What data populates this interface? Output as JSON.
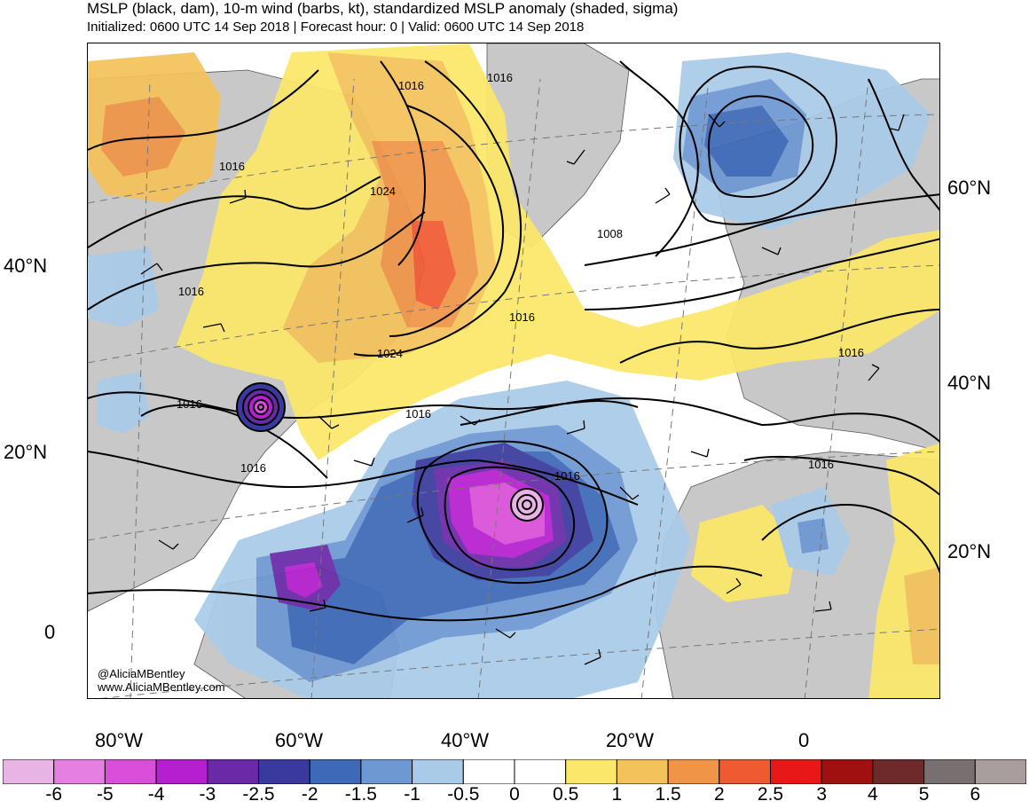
{
  "header": {
    "title": "MSLP (black, dam), 10-m wind (barbs, kt), standardized MSLP anomaly (shaded, sigma)",
    "subtitle": "Initialized: 0600 UTC 14 Sep 2018 | Forecast hour: 0 | Valid: 0600 UTC 14 Sep 2018"
  },
  "map": {
    "left_lat_labels": [
      "40°N",
      "20°N",
      "0"
    ],
    "right_lat_labels": [
      "60°N",
      "40°N",
      "20°N"
    ],
    "lon_labels": [
      "80°W",
      "60°W",
      "40°W",
      "20°W",
      "0"
    ],
    "contour_labels": [
      "1016",
      "1016",
      "1016",
      "1024",
      "1016",
      "1008",
      "1016",
      "1016",
      "1024",
      "1016",
      "1016",
      "1016",
      "1016",
      "1016"
    ],
    "credit_handle": "@AliciaMBentley",
    "credit_url": "www.AliciaMBentley.com",
    "land_color": "#c8c8c8",
    "contour_color": "#000000"
  },
  "colorbar": {
    "labels": [
      "-6",
      "-5",
      "-4",
      "-3",
      "-2.5",
      "-2",
      "-1.5",
      "-1",
      "-0.5",
      "0",
      "0.5",
      "1",
      "1.5",
      "2",
      "2.5",
      "3",
      "4",
      "5",
      "6"
    ],
    "colors": [
      "#e8b4e6",
      "#e67fe2",
      "#d94fd9",
      "#b51fcf",
      "#6a2aa8",
      "#3a3a9e",
      "#3d69b8",
      "#6e98d2",
      "#a9cbe8",
      "#ffffff",
      "#ffffff",
      "#fbe86a",
      "#f4c25a",
      "#f09548",
      "#f05a32",
      "#e81818",
      "#a01010",
      "#6e2a2a",
      "#787070",
      "#a89e9e"
    ]
  }
}
